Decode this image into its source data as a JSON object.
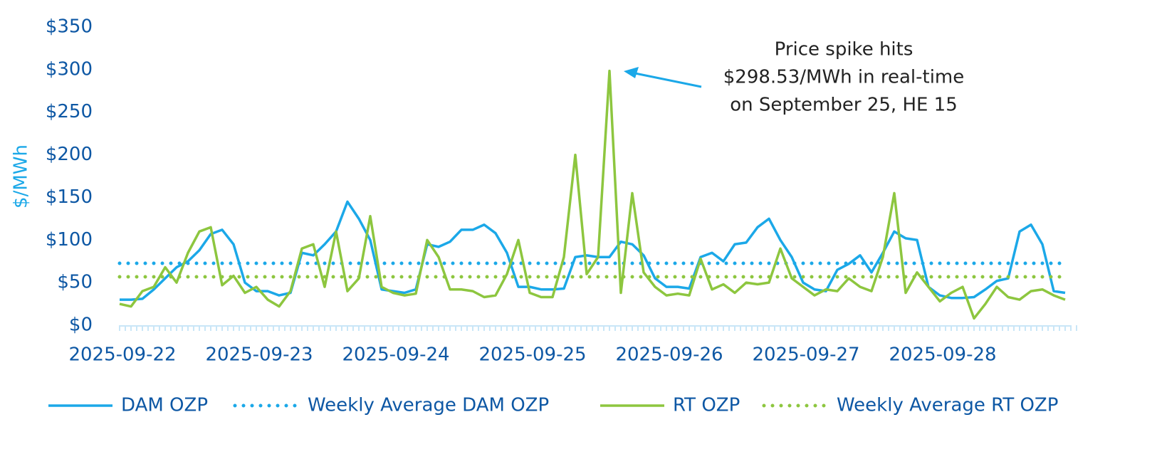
{
  "chart_data": {
    "type": "line",
    "y_axis_label": "$/MWh",
    "annotation": [
      "Price spike hits",
      "$298.53/MWh in real-time",
      "on September 25, HE 15"
    ],
    "categories": [
      "2025-09-22",
      null,
      null,
      null,
      null,
      null,
      null,
      null,
      null,
      null,
      null,
      null,
      "2025-09-23",
      null,
      null,
      null,
      null,
      null,
      null,
      null,
      null,
      null,
      null,
      null,
      "2025-09-24",
      null,
      null,
      null,
      null,
      null,
      null,
      null,
      null,
      null,
      null,
      null,
      "2025-09-25",
      null,
      null,
      null,
      null,
      null,
      null,
      null,
      null,
      null,
      null,
      null,
      "2025-09-26",
      null,
      null,
      null,
      null,
      null,
      null,
      null,
      null,
      null,
      null,
      null,
      "2025-09-27",
      null,
      null,
      null,
      null,
      null,
      null,
      null,
      null,
      null,
      null,
      null,
      "2025-09-28",
      null,
      null,
      null,
      null,
      null,
      null,
      null,
      null,
      null,
      null,
      null
    ],
    "series": [
      {
        "name": "DAM OZP",
        "color": "#1ba8e8",
        "style": "solid",
        "values": [
          30,
          30,
          31,
          42,
          55,
          68,
          75,
          88,
          107,
          112,
          95,
          50,
          40,
          40,
          35,
          38,
          85,
          82,
          95,
          110,
          145,
          125,
          100,
          42,
          40,
          38,
          42,
          95,
          92,
          98,
          112,
          112,
          118,
          108,
          85,
          45,
          45,
          42,
          42,
          43,
          80,
          82,
          80,
          80,
          98,
          95,
          82,
          55,
          45,
          45,
          43,
          80,
          85,
          75,
          95,
          97,
          115,
          125,
          100,
          80,
          50,
          42,
          40,
          65,
          72,
          82,
          62,
          85,
          110,
          102,
          100,
          45,
          35,
          32,
          32,
          33,
          42,
          52,
          55,
          110,
          118,
          95,
          40,
          38
        ]
      },
      {
        "name": "Weekly Average DAM OZP",
        "color": "#1ba8e8",
        "style": "dotted",
        "value": 72.7
      },
      {
        "name": "RT OZP",
        "color": "#8dc63f",
        "style": "solid",
        "values": [
          25,
          22,
          40,
          45,
          68,
          50,
          85,
          110,
          115,
          47,
          58,
          38,
          45,
          30,
          22,
          40,
          90,
          95,
          45,
          110,
          40,
          55,
          128,
          45,
          38,
          35,
          37,
          100,
          80,
          42,
          42,
          40,
          33,
          35,
          60,
          100,
          38,
          33,
          33,
          80,
          200,
          60,
          80,
          298.53,
          38,
          155,
          62,
          45,
          35,
          37,
          35,
          78,
          42,
          48,
          38,
          50,
          48,
          50,
          90,
          55,
          45,
          35,
          42,
          40,
          55,
          45,
          40,
          80,
          155,
          38,
          62,
          45,
          28,
          38,
          45,
          8,
          25,
          45,
          33,
          30,
          40,
          42,
          35,
          30
        ]
      },
      {
        "name": "Weekly Average RT OZP",
        "color": "#8dc63f",
        "style": "dotted",
        "value": 56.8
      }
    ],
    "ylim": [
      0,
      350
    ],
    "yticks": [
      {
        "value": 0,
        "label": "$0"
      },
      {
        "value": 50,
        "label": "$50"
      },
      {
        "value": 100,
        "label": "$100"
      },
      {
        "value": 150,
        "label": "$150"
      },
      {
        "value": 200,
        "label": "$200"
      },
      {
        "value": 250,
        "label": "$250"
      },
      {
        "value": 300,
        "label": "$300"
      },
      {
        "value": 350,
        "label": "$350"
      }
    ],
    "grid": false,
    "legend": "bottom"
  }
}
